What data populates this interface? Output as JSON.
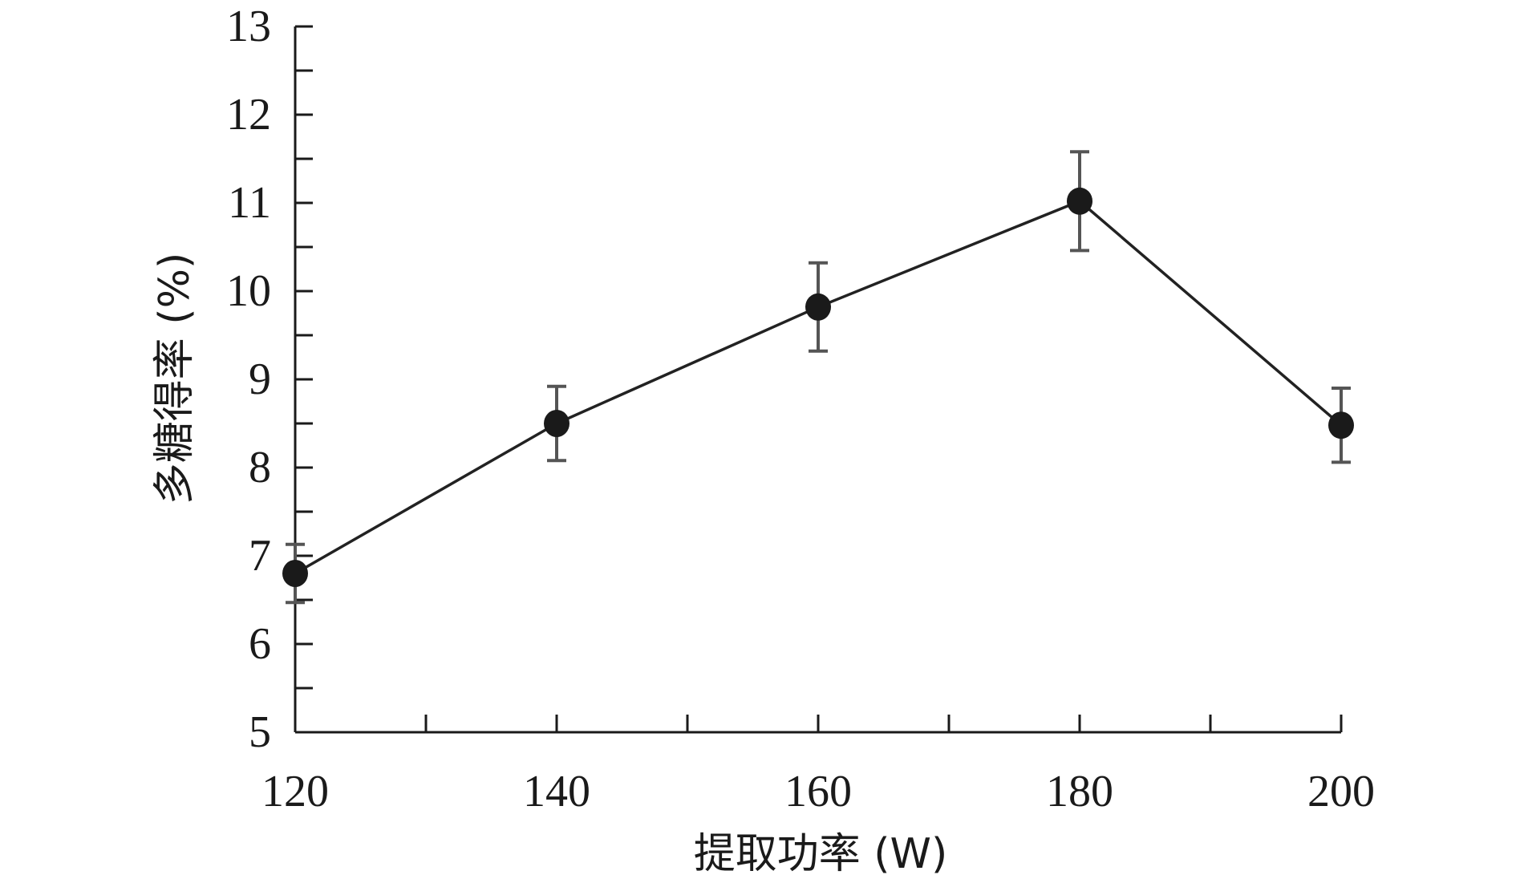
{
  "chart_data": {
    "type": "line",
    "title": "",
    "xlabel": "提取功率 (W)",
    "ylabel": "多糖得率 (%)",
    "xlim": [
      120,
      200
    ],
    "ylim": [
      5,
      13
    ],
    "x_ticks": [
      120,
      140,
      160,
      180,
      200
    ],
    "x_minor_ticks": [
      130,
      150,
      170,
      190
    ],
    "y_ticks": [
      5,
      6,
      7,
      8,
      9,
      10,
      11,
      12,
      13
    ],
    "y_minor_ticks": [
      5.5,
      6.5,
      7.5,
      8.5,
      9.5,
      10.5,
      11.5,
      12.5
    ],
    "grid": false,
    "legend": "none",
    "series": [
      {
        "x": [
          120,
          140,
          160,
          180,
          200
        ],
        "y": [
          6.8,
          8.5,
          9.82,
          11.02,
          8.48
        ],
        "error": [
          0.33,
          0.42,
          0.5,
          0.56,
          0.42
        ]
      }
    ],
    "colors": {
      "line": "#222222",
      "marker": "#1a1a1a",
      "errorbar": "#555555",
      "axis": "#1a1a1a"
    }
  }
}
